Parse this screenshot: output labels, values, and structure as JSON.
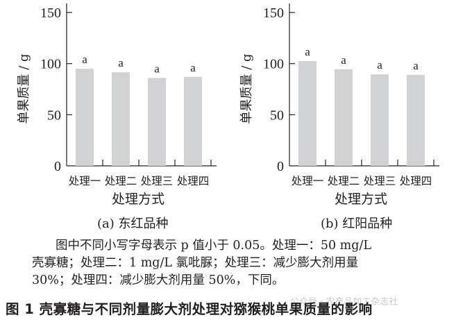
{
  "chart_data": [
    {
      "type": "bar",
      "panel_label": "(a) 东红品种",
      "title": "东红品种",
      "categories": [
        "处理一",
        "处理二",
        "处理三",
        "处理四"
      ],
      "values": [
        95,
        91.5,
        86,
        87
      ],
      "significance_letters": [
        "a",
        "a",
        "a",
        "a"
      ],
      "xlabel": "处理方式",
      "ylabel": "单果质量 / g",
      "ylim": [
        0,
        150
      ],
      "yticks": [
        0,
        50,
        100,
        150
      ],
      "grid": false,
      "bar_color": "#d1d2d4"
    },
    {
      "type": "bar",
      "panel_label": "(b) 红阳品种",
      "title": "红阳品种",
      "categories": [
        "处理一",
        "处理二",
        "处理三",
        "处理四"
      ],
      "values": [
        102.5,
        94.5,
        89.5,
        89
      ],
      "significance_letters": [
        "a",
        "a",
        "a",
        "a"
      ],
      "xlabel": "处理方式",
      "ylabel": "单果质量 / g",
      "ylim": [
        0,
        150
      ],
      "yticks": [
        0,
        50,
        100,
        150
      ],
      "grid": false,
      "bar_color": "#d1d2d4"
    }
  ],
  "captions": {
    "a": "(a)  东红品种",
    "b": "(b)  红阳品种"
  },
  "note": {
    "line1": "图中不同小写字母表示 p 值小于 0.05。处理一：50 mg/L",
    "line2": "壳寡糖；处理二：1 mg/L 氯吡脲；处理三：减少膨大剂用量",
    "line3": "30%；处理四：减少膨大剂用量 50%，下同。"
  },
  "figure_title": "图 1   壳寡糖与不同剂量膨大剂处理对猕猴桃单果质量的影响",
  "watermark": "公众号 · 农产品加工杂志社"
}
